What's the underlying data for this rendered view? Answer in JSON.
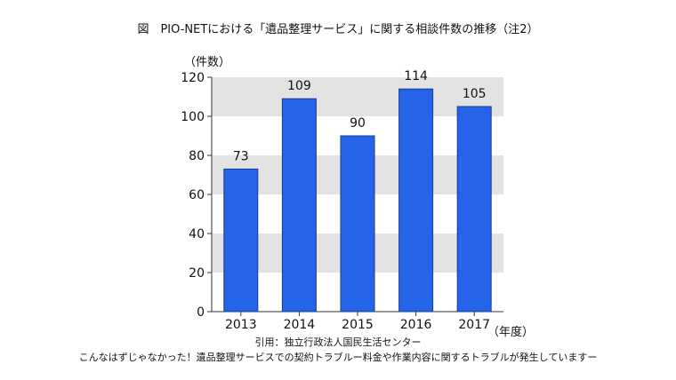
{
  "title": "図　PIO-NETにおける「遺品整理サービス」に関する相談件数の推移（注2）",
  "chart_data": {
    "type": "bar",
    "categories": [
      "2013",
      "2014",
      "2015",
      "2016",
      "2017"
    ],
    "values": [
      73,
      109,
      90,
      114,
      105
    ],
    "ylabel": "（件数）",
    "xlabel": "（年度）",
    "ylim": [
      0,
      120
    ],
    "yticks": [
      0,
      20,
      40,
      60,
      80,
      100,
      120
    ],
    "bar_color": "#2563e8",
    "band_color": "#e3e3e3",
    "data_labels": true
  },
  "source": "引用：独立行政法人国民生活センター",
  "source_title": "こんなはずじゃなかった！遺品整理サービスでの契約トラブルー料金や作業内容に関するトラブルが発生していますー"
}
